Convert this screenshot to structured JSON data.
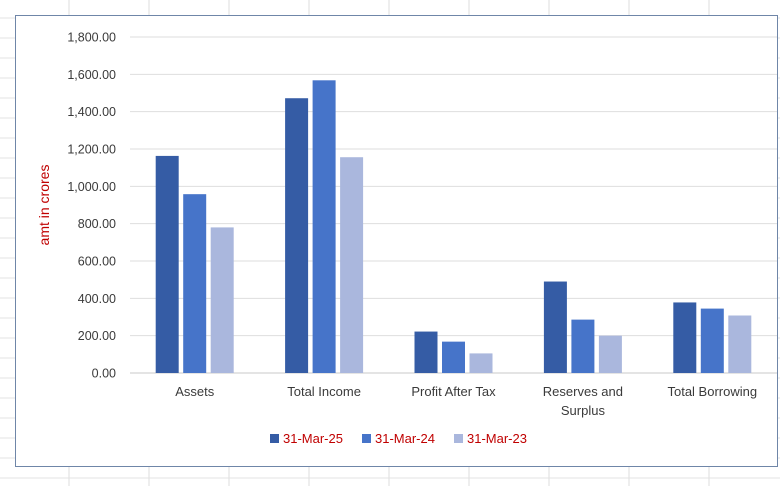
{
  "chart_data": {
    "type": "bar",
    "categories": [
      [
        "Assets"
      ],
      [
        "Total Income"
      ],
      [
        "Profit After Tax"
      ],
      [
        "Reserves and",
        "Surplus"
      ],
      [
        "Total Borrowing"
      ]
    ],
    "series": [
      {
        "name": "31-Mar-25",
        "color": "#355ca5",
        "values": [
          1163,
          1472,
          222,
          490,
          378
        ]
      },
      {
        "name": "31-Mar-24",
        "color": "#4674c9",
        "values": [
          958,
          1568,
          168,
          286,
          345
        ]
      },
      {
        "name": "31-Mar-23",
        "color": "#aab7dd",
        "values": [
          780,
          1156,
          105,
          200,
          308
        ]
      }
    ],
    "title": "",
    "xlabel": "",
    "ylabel": "amt in crores",
    "ylim": [
      0,
      1800
    ],
    "yticks": [
      "0.00",
      "200.00",
      "400.00",
      "600.00",
      "800.00",
      "1,000.00",
      "1,200.00",
      "1,400.00",
      "1,600.00",
      "1,800.00"
    ],
    "grid": true,
    "legend_position": "bottom"
  }
}
